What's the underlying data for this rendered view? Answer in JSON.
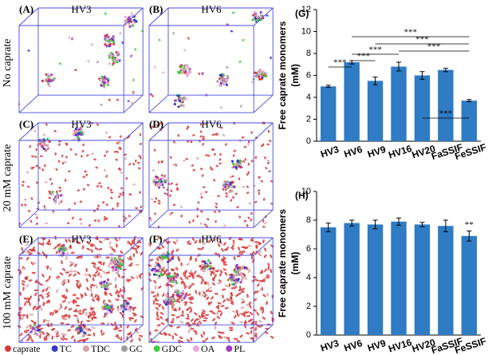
{
  "panels": [
    {
      "label": "(A)",
      "title": "HV3"
    },
    {
      "label": "(B)",
      "title": "HV6"
    },
    {
      "label": "(C)",
      "title": "HV3"
    },
    {
      "label": "(D)",
      "title": "HV6"
    },
    {
      "label": "(E)",
      "title": "HV3"
    },
    {
      "label": "(F)",
      "title": "HV6"
    }
  ],
  "row_labels": [
    "No caprate",
    "20 mM caprate",
    "100 mM caprate"
  ],
  "legend": [
    {
      "name": "caprate",
      "color": "#d63a3a"
    },
    {
      "name": "TC",
      "color": "#3535d0"
    },
    {
      "name": "TDC",
      "color": "#dba3a3"
    },
    {
      "name": "GC",
      "color": "#9c9c9c"
    },
    {
      "name": "GDC",
      "color": "#3fcf3f"
    },
    {
      "name": "OA",
      "color": "#e8a8d8"
    },
    {
      "name": "PL",
      "color": "#a23cc2"
    }
  ],
  "chart_data": [
    {
      "type": "bar",
      "panel_label": "(G)",
      "y_label": [
        "Free caprate monomers",
        "(mM)"
      ],
      "color": "#2f7bc4",
      "categories": [
        "HV3",
        "HV6",
        "HV9",
        "HV16",
        "HV20",
        "FaSSIF",
        "FeSSIF"
      ],
      "values": [
        5.0,
        7.2,
        5.5,
        6.8,
        6.0,
        6.5,
        3.7
      ],
      "errors": [
        0.1,
        0.15,
        0.35,
        0.4,
        0.35,
        0.15,
        0.1
      ],
      "ylim": [
        0,
        12
      ],
      "yticks": [
        0,
        2,
        4,
        6,
        8,
        10,
        12
      ],
      "brackets": [
        {
          "from": 0,
          "to": 1,
          "label": "***"
        },
        {
          "from": 1,
          "to": 3,
          "label": "***"
        },
        {
          "from": 1,
          "to": 2,
          "label": "***"
        },
        {
          "from": 1,
          "to": 6,
          "label": "***"
        },
        {
          "from": 2,
          "to": 6,
          "label": "***"
        },
        {
          "from": 3,
          "to": 6,
          "label": "***"
        },
        {
          "from": 4,
          "to": 6,
          "label": "***"
        }
      ]
    },
    {
      "type": "bar",
      "panel_label": "(H)",
      "y_label": [
        "Free caprate monomers",
        "(mM)"
      ],
      "color": "#2f7bc4",
      "categories": [
        "HV3",
        "HV6",
        "HV9",
        "HV16",
        "HV20",
        "FaSSIF",
        "FeSSIF"
      ],
      "values": [
        7.5,
        7.8,
        7.7,
        7.9,
        7.7,
        7.6,
        6.9
      ],
      "errors": [
        0.3,
        0.2,
        0.3,
        0.25,
        0.15,
        0.4,
        0.35
      ],
      "ylim": [
        0,
        10
      ],
      "yticks": [
        0,
        2,
        4,
        6,
        8,
        10
      ],
      "markers": [
        {
          "category": 6,
          "label": "**"
        }
      ]
    }
  ]
}
